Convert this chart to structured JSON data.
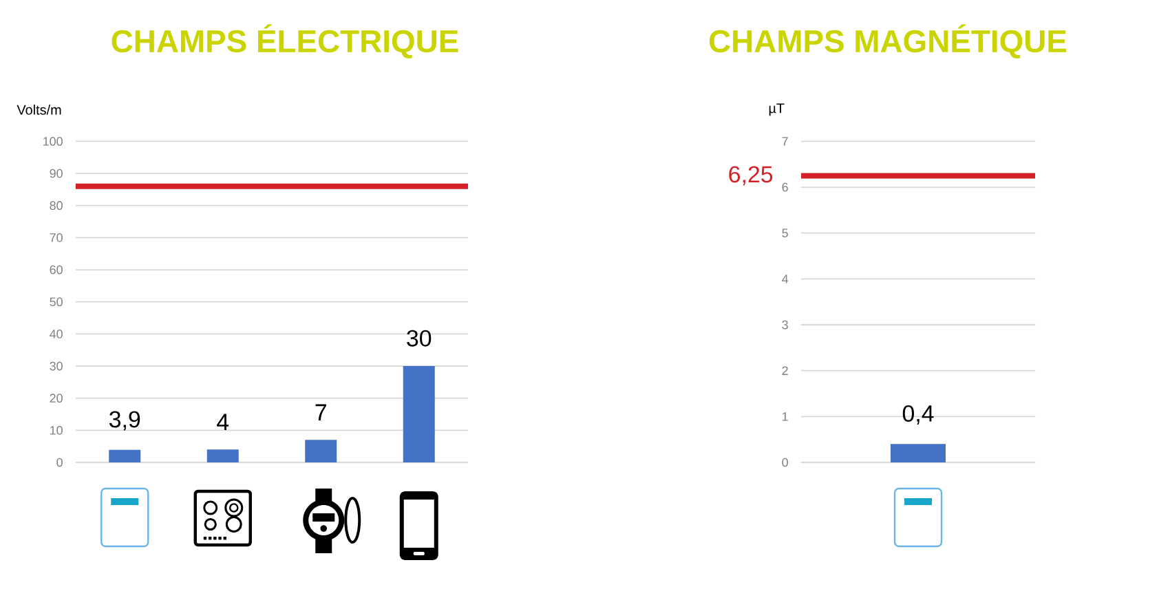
{
  "chart_data": [
    {
      "type": "bar",
      "title": "CHAMPS ÉLECTRIQUE",
      "ylabel": "Volts/m",
      "categories": [
        null,
        null,
        null,
        null
      ],
      "values": [
        3.9,
        4,
        7,
        30
      ],
      "value_labels": [
        "3,9",
        "4",
        "7",
        "30"
      ],
      "color": "#4472c4",
      "ylim": [
        0,
        100
      ],
      "yticks": [
        0,
        10,
        20,
        30,
        40,
        50,
        60,
        70,
        80,
        90,
        100
      ],
      "grid": "y",
      "ref_lines": [
        {
          "axis": "y",
          "value": 86,
          "color": "#d42027"
        }
      ]
    },
    {
      "type": "bar",
      "title": "CHAMPS MAGNÉTIQUE",
      "ylabel": "µT",
      "categories": [
        null
      ],
      "values": [
        0.4
      ],
      "value_labels": [
        "0,4"
      ],
      "color": "#4472c4",
      "ylim": [
        0,
        7
      ],
      "yticks": [
        0,
        1,
        2,
        3,
        4,
        5,
        6,
        7
      ],
      "grid": "y",
      "ref_lines": [
        {
          "axis": "y",
          "value": 6.25,
          "label": "6,25",
          "color": "#d42027"
        }
      ]
    }
  ]
}
